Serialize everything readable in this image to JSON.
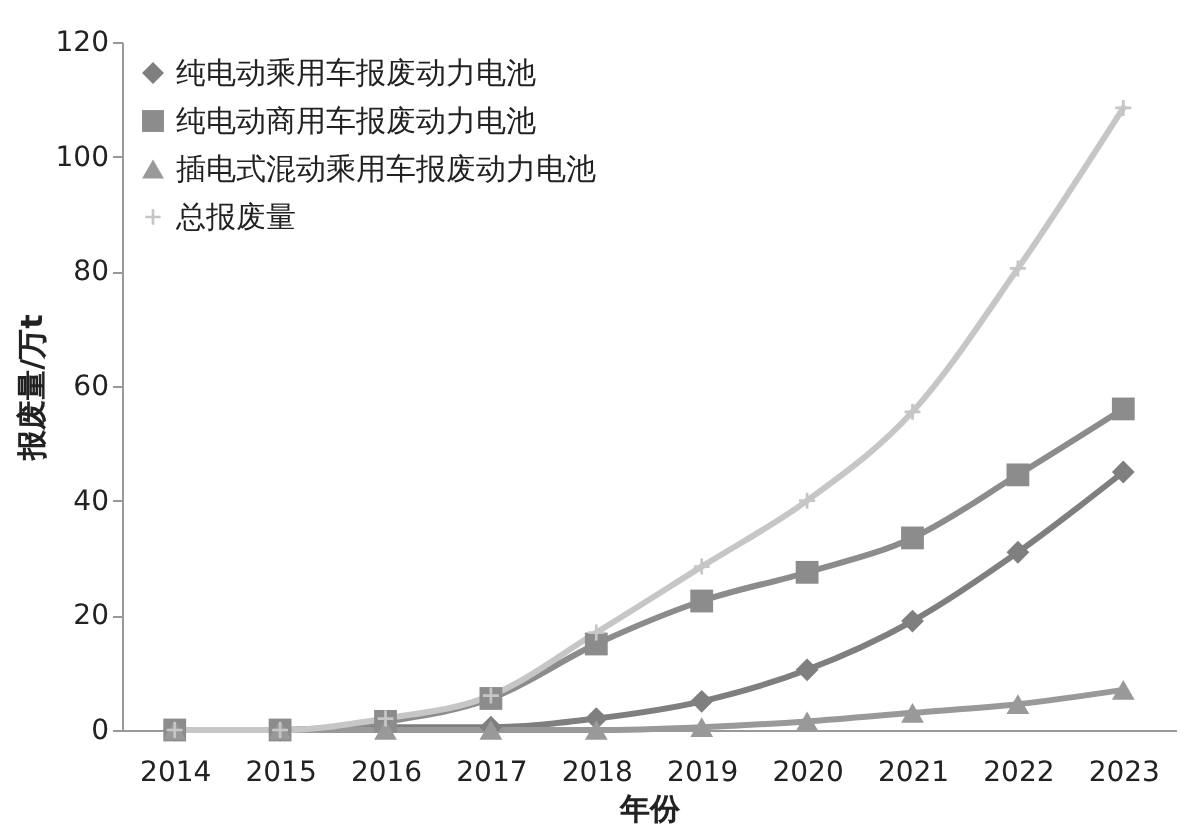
{
  "chart_data": {
    "type": "line",
    "xlabel": "年份",
    "ylabel": "报废量/万t",
    "categories": [
      "2014",
      "2015",
      "2016",
      "2017",
      "2018",
      "2019",
      "2020",
      "2021",
      "2022",
      "2023"
    ],
    "series": [
      {
        "name": "纯电动乘用车报废动力电池",
        "color": "#7f7f7f",
        "marker": "diamond",
        "values": [
          0,
          0,
          0.5,
          0.5,
          2,
          5,
          10.5,
          19,
          31,
          45
        ]
      },
      {
        "name": "纯电动商用车报废动力电池",
        "color": "#8c8c8c",
        "marker": "square",
        "values": [
          0,
          0,
          1.5,
          5.5,
          15,
          22.5,
          27.5,
          33.5,
          44.5,
          56
        ]
      },
      {
        "name": "插电式混动乘用车报废动力电池",
        "color": "#999999",
        "marker": "triangle",
        "values": [
          0,
          0,
          0,
          0,
          0,
          0.5,
          1.5,
          3,
          4.5,
          7
        ]
      },
      {
        "name": "总报废量",
        "color": "#c6c6c6",
        "marker": "cross",
        "values": [
          0,
          0,
          2,
          6,
          17,
          28.5,
          40,
          55.5,
          80.5,
          108.5
        ]
      }
    ],
    "ylim": [
      0,
      120
    ],
    "yticks": [
      0,
      20,
      40,
      60,
      80,
      100,
      120
    ],
    "grid": false,
    "legend": "top left",
    "line_style": "solid"
  }
}
